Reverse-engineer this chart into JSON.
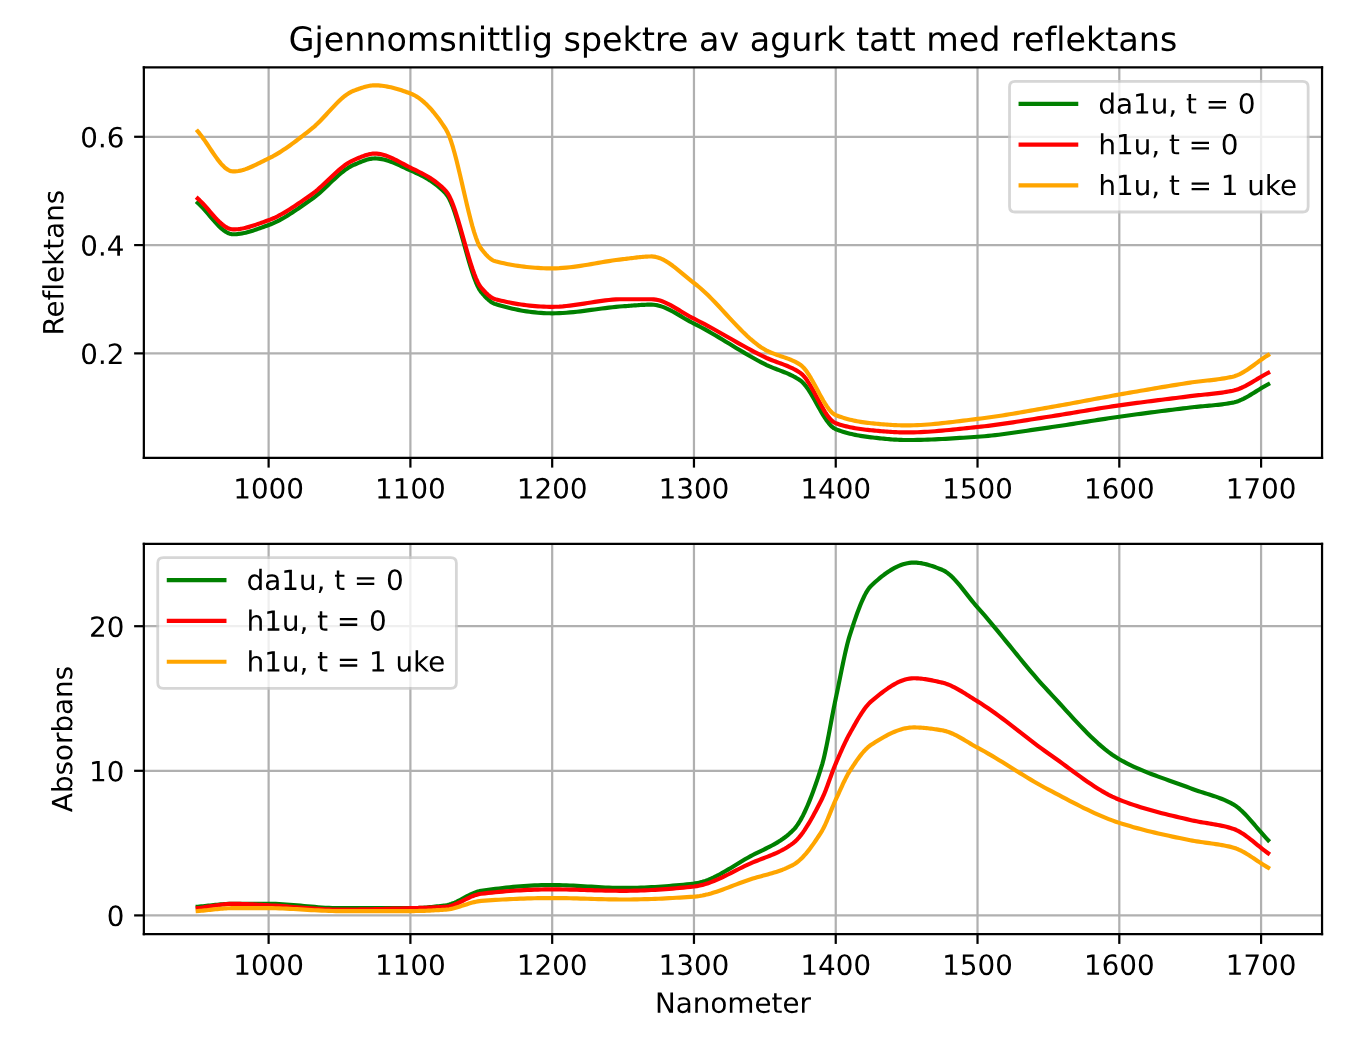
{
  "chart_data": [
    {
      "type": "line",
      "title": "Gjennomsnittlig spektre av agurk tatt med reflektans",
      "ylabel": "Reflektans",
      "grid": true,
      "legend": "top right",
      "xlim": [
        912,
        1743
      ],
      "xticks": [
        1000,
        1100,
        1200,
        1300,
        1400,
        1500,
        1600,
        1700
      ],
      "ylim": [
        0.007,
        0.728
      ],
      "yticks": [
        0.2,
        0.4,
        0.6
      ],
      "x": [
        950,
        975,
        1000,
        1030,
        1060,
        1075,
        1100,
        1125,
        1150,
        1160,
        1200,
        1250,
        1270,
        1300,
        1350,
        1375,
        1400,
        1425,
        1450,
        1500,
        1550,
        1600,
        1650,
        1680,
        1705
      ],
      "series": [
        {
          "name": "da1u, t = 0",
          "color": "#008000",
          "values": [
            0.478,
            0.42,
            0.437,
            0.484,
            0.548,
            0.56,
            0.538,
            0.495,
            0.313,
            0.291,
            0.274,
            0.287,
            0.29,
            0.255,
            0.18,
            0.15,
            0.06,
            0.045,
            0.04,
            0.046,
            0.063,
            0.083,
            0.1,
            0.109,
            0.143
          ]
        },
        {
          "name": "h1u, t = 0",
          "color": "#ff0000",
          "values": [
            0.486,
            0.429,
            0.446,
            0.493,
            0.557,
            0.569,
            0.543,
            0.5,
            0.321,
            0.3,
            0.286,
            0.3,
            0.3,
            0.264,
            0.193,
            0.164,
            0.071,
            0.058,
            0.054,
            0.064,
            0.083,
            0.104,
            0.121,
            0.131,
            0.164
          ]
        },
        {
          "name": "h1u, t = 1 uke",
          "color": "#ffa500",
          "values": [
            0.61,
            0.536,
            0.56,
            0.614,
            0.685,
            0.695,
            0.68,
            0.614,
            0.393,
            0.37,
            0.357,
            0.374,
            0.379,
            0.33,
            0.207,
            0.179,
            0.086,
            0.071,
            0.067,
            0.079,
            0.1,
            0.124,
            0.146,
            0.157,
            0.197
          ]
        }
      ]
    },
    {
      "type": "line",
      "xlabel": "Nanometer",
      "ylabel": "Absorbans",
      "grid": true,
      "legend": "top left",
      "xlim": [
        912,
        1743
      ],
      "xticks": [
        1000,
        1100,
        1200,
        1300,
        1400,
        1500,
        1600,
        1700
      ],
      "ylim": [
        -1.3,
        25.7
      ],
      "yticks": [
        0,
        10,
        20
      ],
      "x": [
        950,
        975,
        1000,
        1050,
        1100,
        1125,
        1150,
        1200,
        1250,
        1300,
        1340,
        1370,
        1390,
        1400,
        1410,
        1425,
        1455,
        1475,
        1500,
        1550,
        1600,
        1650,
        1680,
        1705
      ],
      "series": [
        {
          "name": "da1u, t = 0",
          "color": "#008000",
          "values": [
            0.6,
            0.8,
            0.8,
            0.5,
            0.5,
            0.7,
            1.7,
            2.1,
            1.9,
            2.2,
            4.1,
            5.9,
            10.3,
            15,
            19.4,
            22.8,
            24.4,
            23.9,
            21.3,
            15.5,
            10.8,
            8.8,
            7.7,
            5.2
          ]
        },
        {
          "name": "h1u, t = 0",
          "color": "#ff0000",
          "values": [
            0.5,
            0.8,
            0.7,
            0.4,
            0.5,
            0.6,
            1.5,
            1.8,
            1.7,
            2.0,
            3.6,
            5.0,
            8.0,
            10.5,
            12.6,
            14.8,
            16.4,
            16.1,
            14.8,
            11.2,
            8.0,
            6.6,
            6.0,
            4.3
          ]
        },
        {
          "name": "h1u, t = 1 uke",
          "color": "#ffa500",
          "values": [
            0.3,
            0.5,
            0.5,
            0.3,
            0.3,
            0.4,
            1.0,
            1.2,
            1.1,
            1.3,
            2.5,
            3.5,
            5.8,
            8.0,
            10.0,
            11.8,
            13.0,
            12.8,
            11.6,
            8.7,
            6.4,
            5.2,
            4.7,
            3.3
          ]
        }
      ]
    }
  ]
}
